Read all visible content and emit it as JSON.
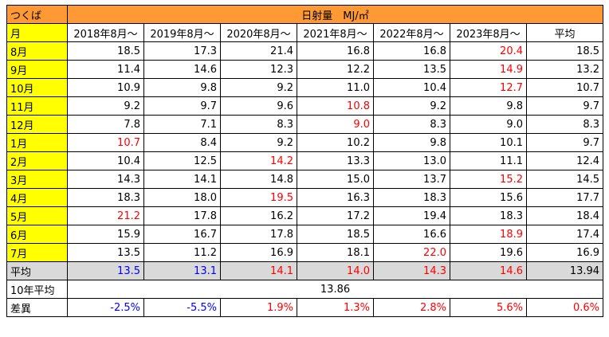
{
  "colors": {
    "orange": "#ff9933",
    "yellow": "#ffff00",
    "gray": "#d9d9d9",
    "red": "#ff0000",
    "blue": "#0000ff",
    "black": "#000000"
  },
  "header": {
    "location": "つくば",
    "title": "日射量　MJ/㎡",
    "month_label": "月",
    "columns": [
      "2018年8月～",
      "2019年8月～",
      "2020年8月～",
      "2021年8月～",
      "2022年8月～",
      "2023年8月～",
      "平均"
    ]
  },
  "rows": [
    {
      "month": "8月",
      "values": [
        "18.5",
        "17.3",
        "21.4",
        "16.8",
        "16.8",
        "20.4",
        "18.5"
      ],
      "colors": [
        "black",
        "black",
        "black",
        "black",
        "black",
        "red",
        "black"
      ]
    },
    {
      "month": "9月",
      "values": [
        "11.4",
        "14.6",
        "12.3",
        "12.2",
        "13.5",
        "14.9",
        "13.2"
      ],
      "colors": [
        "black",
        "black",
        "black",
        "black",
        "black",
        "red",
        "black"
      ]
    },
    {
      "month": "10月",
      "values": [
        "10.9",
        "9.8",
        "9.2",
        "11.0",
        "10.4",
        "12.7",
        "10.7"
      ],
      "colors": [
        "black",
        "black",
        "black",
        "black",
        "black",
        "red",
        "black"
      ]
    },
    {
      "month": "11月",
      "values": [
        "9.2",
        "9.7",
        "9.6",
        "10.8",
        "9.2",
        "9.8",
        "9.7"
      ],
      "colors": [
        "black",
        "black",
        "black",
        "red",
        "black",
        "black",
        "black"
      ]
    },
    {
      "month": "12月",
      "values": [
        "7.8",
        "7.1",
        "8.3",
        "9.0",
        "8.3",
        "9.0",
        "8.3"
      ],
      "colors": [
        "black",
        "black",
        "black",
        "red",
        "black",
        "black",
        "black"
      ]
    },
    {
      "month": "1月",
      "values": [
        "10.7",
        "8.4",
        "9.2",
        "10.2",
        "9.8",
        "10.1",
        "9.7"
      ],
      "colors": [
        "red",
        "black",
        "black",
        "black",
        "black",
        "black",
        "black"
      ]
    },
    {
      "month": "2月",
      "values": [
        "10.4",
        "12.5",
        "14.2",
        "13.3",
        "13.0",
        "11.1",
        "12.4"
      ],
      "colors": [
        "black",
        "black",
        "red",
        "black",
        "black",
        "black",
        "black"
      ]
    },
    {
      "month": "3月",
      "values": [
        "14.3",
        "14.1",
        "14.8",
        "15.0",
        "13.7",
        "15.2",
        "14.5"
      ],
      "colors": [
        "black",
        "black",
        "black",
        "black",
        "black",
        "red",
        "black"
      ]
    },
    {
      "month": "4月",
      "values": [
        "18.3",
        "18.0",
        "19.5",
        "16.3",
        "18.3",
        "15.6",
        "17.7"
      ],
      "colors": [
        "black",
        "black",
        "red",
        "black",
        "black",
        "black",
        "black"
      ]
    },
    {
      "month": "5月",
      "values": [
        "21.2",
        "17.8",
        "16.2",
        "17.2",
        "19.4",
        "18.3",
        "18.4"
      ],
      "colors": [
        "red",
        "black",
        "black",
        "black",
        "black",
        "black",
        "black"
      ]
    },
    {
      "month": "6月",
      "values": [
        "15.9",
        "16.7",
        "17.8",
        "18.5",
        "16.6",
        "18.9",
        "17.4"
      ],
      "colors": [
        "black",
        "black",
        "black",
        "black",
        "black",
        "red",
        "black"
      ]
    },
    {
      "month": "7月",
      "values": [
        "13.5",
        "11.2",
        "16.9",
        "18.1",
        "22.0",
        "19.6",
        "16.9"
      ],
      "colors": [
        "black",
        "black",
        "black",
        "black",
        "red",
        "black",
        "black"
      ]
    }
  ],
  "average_row": {
    "label": "平均",
    "values": [
      "13.5",
      "13.1",
      "14.1",
      "14.0",
      "14.3",
      "14.6",
      "13.94"
    ],
    "colors": [
      "blue",
      "blue",
      "red",
      "red",
      "red",
      "red",
      "black"
    ]
  },
  "ten_year": {
    "label": "10年平均",
    "value": "13.86"
  },
  "diff_row": {
    "label": "差異",
    "values": [
      "-2.5%",
      "-5.5%",
      "1.9%",
      "1.3%",
      "2.8%",
      "5.6%",
      "0.6%"
    ],
    "colors": [
      "blue",
      "blue",
      "red",
      "red",
      "red",
      "red",
      "red"
    ]
  }
}
